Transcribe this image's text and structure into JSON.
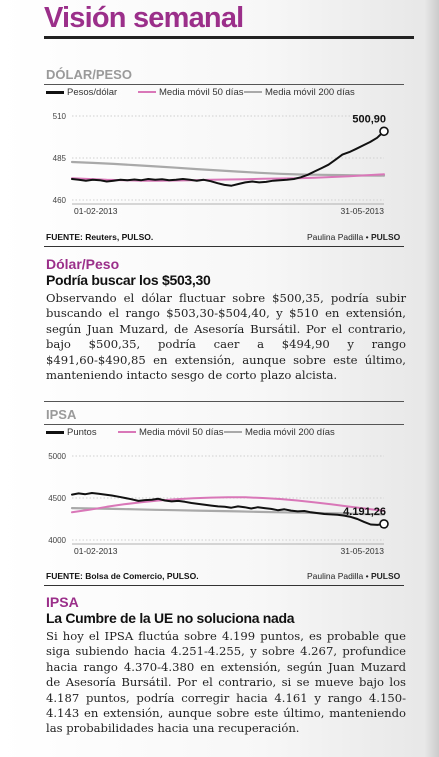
{
  "title": "Visión semanal",
  "colors": {
    "accent": "#9b2f8a",
    "series": "#111111",
    "ma50": "#d977b8",
    "ma200": "#a9a9a9"
  },
  "charts": [
    {
      "header": "DÓLAR/PESO",
      "legend": [
        "Pesos/dólar",
        "Media móvil 50 días",
        "Media móvil 200 días"
      ],
      "source": "FUENTE: Reuters, PULSO.",
      "credit_name": "Paulina Padilla",
      "credit_org": "PULSO"
    },
    {
      "header": "IPSA",
      "legend": [
        "Puntos",
        "Media móvil 50 días",
        "Media móvil 200 días"
      ],
      "source": "FUENTE: Bolsa de Comercio, PULSO.",
      "credit_name": "Paulina Padilla",
      "credit_org": "PULSO"
    }
  ],
  "sections": [
    {
      "head": "Dólar/Peso",
      "sub": "Podría buscar los $503,30",
      "text": "Observando el dólar fluctuar sobre $500,35, podría subir buscando el rango $503,30-$504,40, y $510 en extensión, según Juan Muzard, de Asesoría Bursátil. Por el contrario, bajo $500,35, podría caer a $494,90 y rango $491,60-$490,85 en extensión, aunque sobre este último, manteniendo intacto sesgo de corto plazo alcista."
    },
    {
      "head": "IPSA",
      "sub": "La Cumbre de la UE no soluciona nada",
      "text": "Si hoy el IPSA fluctúa sobre 4.199 puntos, es probable que siga subiendo hacia 4.251-4.255, y sobre 4.267, profundice hacia rango 4.370-4.380 en extensión, según Juan Muzard de Asesoría Bursátil. Por el contrario, si se mueve bajo los 4.187 puntos, podría corregir hacia 4.161 y rango 4.150-4.143 en extensión, aunque sobre este último, manteniendo las probabilidades hacia una recuperación."
    }
  ],
  "chart_data": [
    {
      "type": "line",
      "x_start_label": "01-02-2013",
      "x_end_label": "31-05-2013",
      "yticks": [
        "510",
        "485",
        "460"
      ],
      "ylim": [
        460,
        510
      ],
      "end_value_label": "500,90",
      "grid": true,
      "legend_position": "top",
      "series": [
        {
          "name": "Pesos/dólar",
          "values": [
            472.5,
            472,
            471.5,
            472,
            471.8,
            471,
            471.5,
            472,
            471.8,
            472.2,
            471.8,
            472.5,
            472,
            472.3,
            471.8,
            472,
            472.5,
            472,
            471.5,
            472,
            471.2,
            470,
            469,
            468.5,
            469.5,
            470.5,
            471,
            470.5,
            470.8,
            471.5,
            471.8,
            472,
            472.5,
            473.5,
            475,
            477,
            479,
            481,
            484,
            487,
            488.5,
            490.5,
            492.5,
            494.5,
            497,
            500.9
          ]
        },
        {
          "name": "Media móvil 50 días",
          "values": [
            473,
            472.5,
            472,
            471.8,
            471.5,
            471.5,
            471.6,
            471.8,
            472,
            472.2,
            472.4,
            472.6,
            472.8,
            473,
            473.3,
            473.7,
            474.1,
            474.7,
            475.3
          ]
        },
        {
          "name": "Media móvil 200 días",
          "values": [
            482.6,
            482.1,
            481.5,
            480.8,
            480,
            479.2,
            478.4,
            477.6,
            476.9,
            476.2,
            475.6,
            475.2,
            475,
            474.8,
            474.6,
            474.5
          ]
        }
      ]
    },
    {
      "type": "line",
      "x_start_label": "01-02-2013",
      "x_end_label": "31-05-2013",
      "yticks": [
        "5000",
        "4500",
        "4000"
      ],
      "ylim": [
        4000,
        5000
      ],
      "end_value_label": "4.191,26",
      "grid": true,
      "legend_position": "top",
      "series": [
        {
          "name": "Puntos",
          "values": [
            4540,
            4555,
            4545,
            4560,
            4550,
            4540,
            4530,
            4515,
            4500,
            4485,
            4465,
            4475,
            4480,
            4490,
            4470,
            4460,
            4465,
            4455,
            4440,
            4430,
            4420,
            4410,
            4400,
            4395,
            4385,
            4400,
            4390,
            4375,
            4390,
            4380,
            4370,
            4355,
            4365,
            4350,
            4340,
            4345,
            4330,
            4320,
            4310,
            4305,
            4300,
            4290,
            4275,
            4250,
            4215,
            4185,
            4180,
            4191.26
          ]
        },
        {
          "name": "Media móvil 50 días",
          "values": [
            4330,
            4360,
            4395,
            4425,
            4450,
            4470,
            4485,
            4497,
            4505,
            4510,
            4508,
            4500,
            4488,
            4470,
            4448,
            4424,
            4398,
            4372,
            4348
          ]
        },
        {
          "name": "Media móvil 200 días",
          "values": [
            4380,
            4375,
            4370,
            4365,
            4360,
            4355,
            4350,
            4345,
            4340,
            4335,
            4330,
            4325,
            4320,
            4315,
            4310,
            4305
          ]
        }
      ]
    }
  ]
}
